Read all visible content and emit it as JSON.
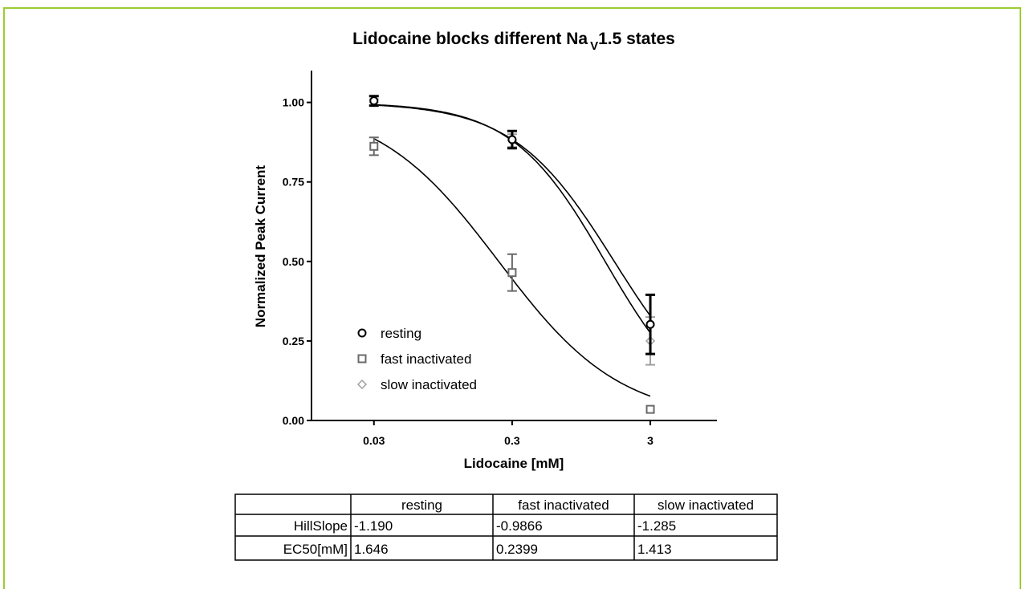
{
  "chart_data": {
    "type": "scatter",
    "title_parts": [
      "Lidocaine blocks different Na",
      "V",
      "1.5 states"
    ],
    "x_label": "Lidocaine [mM]",
    "y_label": "Normalized Peak Current",
    "x": [
      0.03,
      0.3,
      3
    ],
    "xlim": [
      0.0106,
      9.1
    ],
    "xscale": "log",
    "xticks": [
      0.03,
      0.3,
      3
    ],
    "ylim": [
      0,
      1.1
    ],
    "yticks": [
      {
        "value": 0,
        "label": "0.00"
      },
      {
        "value": 0.25,
        "label": "0.25"
      },
      {
        "value": 0.5,
        "label": "0.50"
      },
      {
        "value": 0.75,
        "label": "0.75"
      },
      {
        "value": 1,
        "label": "1.00"
      }
    ],
    "series": [
      {
        "name": "resting",
        "color": "#000000",
        "marker": "circle",
        "values": [
          1.005,
          0.883,
          0.302
        ],
        "errors": [
          0.015,
          0.027,
          0.093
        ]
      },
      {
        "name": "fast inactivated",
        "color": "#6a6a6a",
        "marker": "square",
        "values": [
          0.862,
          0.465,
          0.035
        ],
        "errors": [
          0.028,
          0.058,
          null
        ]
      },
      {
        "name": "slow inactivated",
        "color": "#a0a0a0",
        "marker": "diamond",
        "values": [
          1.0,
          0.88,
          0.25
        ],
        "errors": [
          0.01,
          0.02,
          0.075
        ]
      }
    ]
  },
  "table": {
    "header": [
      "resting",
      "fast inactivated",
      "slow inactivated"
    ],
    "rows": [
      [
        "HillSlope",
        "-1.190",
        "-0.9866",
        "-1.285"
      ],
      [
        "EC50[mM]",
        "1.646",
        "0.2399",
        "1.413"
      ]
    ]
  }
}
